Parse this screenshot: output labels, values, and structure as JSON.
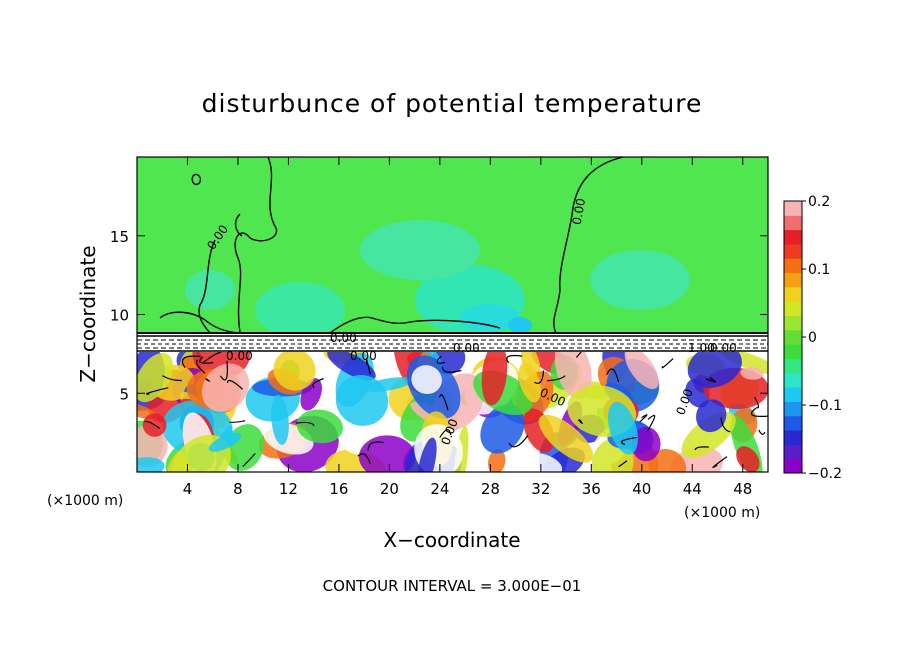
{
  "chart_data": {
    "type": "heatmap",
    "title": "disturbunce of potential temperature",
    "xlabel": "X−coordinate",
    "ylabel": "Z−coordinate",
    "x_unit_left": "(×1000 m)",
    "x_unit_right": "(×1000 m)",
    "x_ticks": [
      4,
      8,
      12,
      16,
      20,
      24,
      28,
      32,
      36,
      40,
      44,
      48
    ],
    "y_ticks": [
      5,
      10,
      15
    ],
    "xlim": [
      0,
      50
    ],
    "ylim": [
      0,
      20
    ],
    "colorbar": {
      "ticks": [
        "0.2",
        "0.1",
        "0",
        "−0.1",
        "−0.2"
      ],
      "tick_values": [
        0.2,
        0.1,
        0,
        -0.1,
        -0.2
      ],
      "range": [
        -0.2,
        0.2
      ],
      "colors": [
        "#8b00c8",
        "#5a1ec8",
        "#2828d2",
        "#1e5ae6",
        "#1e96f0",
        "#1ec8f0",
        "#2de6c8",
        "#32e682",
        "#3cdc3c",
        "#64dc32",
        "#9be632",
        "#d2e628",
        "#f0d21e",
        "#f5a014",
        "#f56e14",
        "#f03c1e",
        "#e61e28",
        "#f06e6e",
        "#f8b4b4"
      ]
    },
    "contour_labels": [
      "0.00",
      "0.00",
      "0.00",
      "0.00",
      "0.00",
      "0.00",
      "0.00",
      "0.00",
      "0.00",
      "1.00",
      "0.00"
    ],
    "footer": "CONTOUR INTERVAL = 3.000E−01"
  }
}
